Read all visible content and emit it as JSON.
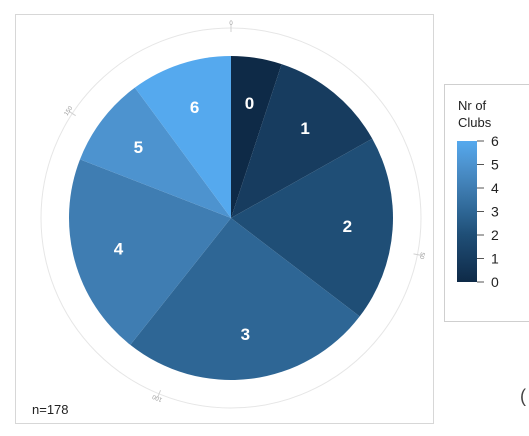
{
  "chart_data": {
    "type": "pie",
    "categories": [
      "0",
      "1",
      "2",
      "3",
      "4",
      "5",
      "6"
    ],
    "values": [
      9,
      21,
      33,
      45,
      36,
      16,
      18
    ],
    "colors": [
      "#0e2a47",
      "#173c5f",
      "#1f4e76",
      "#2e6695",
      "#3f7db2",
      "#4d93cf",
      "#55a9ee"
    ],
    "legend": {
      "title_line1": "Nr of",
      "title_line2": "Clubs",
      "ticks": [
        "6",
        "5",
        "4",
        "3",
        "2",
        "1",
        "0"
      ],
      "placement": "right"
    },
    "annotation": "n=178",
    "radial_axis": {
      "tick_labels": [
        "0",
        "50",
        "100",
        "150"
      ],
      "range": [
        0,
        178
      ]
    }
  },
  "page": {
    "edge_glyph": "("
  }
}
